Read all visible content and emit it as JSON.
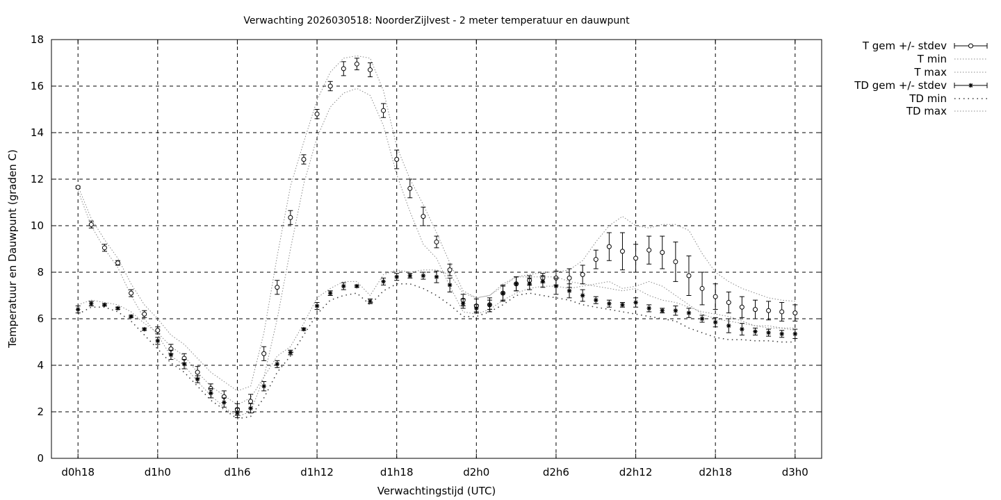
{
  "chart_data": {
    "type": "line",
    "title": "Verwachting 2026030518: NoorderZijlvest - 2 meter temperatuur en dauwpunt",
    "xlabel": "Verwachtingstijd (UTC)",
    "ylabel": "Temperatuur en Dauwpunt (graden C)",
    "x_unit": "hours",
    "xlim": [
      -2,
      56
    ],
    "ylim": [
      0,
      18
    ],
    "grid": true,
    "legend_position": "outside-right",
    "x_ticks": [
      {
        "x": 0,
        "label": "d0h18"
      },
      {
        "x": 6,
        "label": "d1h0"
      },
      {
        "x": 12,
        "label": "d1h6"
      },
      {
        "x": 18,
        "label": "d1h12"
      },
      {
        "x": 24,
        "label": "d1h18"
      },
      {
        "x": 30,
        "label": "d2h0"
      },
      {
        "x": 36,
        "label": "d2h6"
      },
      {
        "x": 42,
        "label": "d2h12"
      },
      {
        "x": 48,
        "label": "d2h18"
      },
      {
        "x": 54,
        "label": "d3h0"
      }
    ],
    "y_ticks": [
      0,
      2,
      4,
      6,
      8,
      10,
      12,
      14,
      16,
      18
    ],
    "x": [
      0,
      1,
      2,
      3,
      4,
      5,
      6,
      7,
      8,
      9,
      10,
      11,
      12,
      13,
      14,
      15,
      16,
      17,
      18,
      19,
      20,
      21,
      22,
      23,
      24,
      25,
      26,
      27,
      28,
      29,
      30,
      31,
      32,
      33,
      34,
      35,
      36,
      37,
      38,
      39,
      40,
      41,
      42,
      43,
      44,
      45,
      46,
      47,
      48,
      49,
      50,
      51,
      52,
      53,
      54
    ],
    "series": [
      {
        "name": "T gem +/- stdev",
        "marker": "circle",
        "values": [
          11.65,
          10.05,
          9.05,
          8.4,
          7.1,
          6.2,
          5.5,
          4.7,
          4.3,
          3.7,
          3.0,
          2.65,
          2.1,
          2.45,
          4.5,
          7.35,
          10.35,
          12.85,
          14.8,
          16.0,
          16.75,
          16.95,
          16.7,
          14.95,
          12.85,
          11.6,
          10.4,
          9.3,
          8.1,
          6.8,
          6.55,
          6.6,
          7.1,
          7.5,
          7.65,
          7.75,
          7.75,
          7.75,
          7.9,
          8.55,
          9.1,
          8.9,
          8.6,
          8.95,
          8.85,
          8.45,
          7.85,
          7.3,
          6.95,
          6.7,
          6.5,
          6.4,
          6.35,
          6.3,
          6.25
        ],
        "errors": [
          0.05,
          0.15,
          0.15,
          0.1,
          0.15,
          0.15,
          0.15,
          0.2,
          0.2,
          0.25,
          0.2,
          0.25,
          0.25,
          0.3,
          0.3,
          0.3,
          0.3,
          0.2,
          0.2,
          0.2,
          0.3,
          0.25,
          0.3,
          0.3,
          0.4,
          0.4,
          0.4,
          0.25,
          0.25,
          0.25,
          0.3,
          0.3,
          0.3,
          0.3,
          0.2,
          0.2,
          0.3,
          0.4,
          0.4,
          0.4,
          0.6,
          0.8,
          0.6,
          0.6,
          0.7,
          0.85,
          0.85,
          0.7,
          0.55,
          0.45,
          0.45,
          0.4,
          0.4,
          0.4,
          0.35
        ]
      },
      {
        "name": "T min",
        "style": "dotted",
        "values": [
          11.5,
          10.0,
          9.0,
          8.2,
          7.0,
          6.0,
          5.3,
          4.4,
          4.0,
          3.3,
          2.7,
          2.2,
          1.8,
          2.0,
          3.5,
          6.0,
          9.0,
          11.8,
          13.8,
          15.1,
          15.7,
          15.9,
          15.6,
          14.3,
          12.2,
          10.6,
          9.2,
          8.6,
          7.4,
          6.3,
          6.2,
          6.4,
          6.8,
          7.1,
          7.3,
          7.4,
          7.4,
          7.3,
          7.4,
          7.5,
          7.6,
          7.3,
          7.4,
          7.6,
          7.4,
          7.0,
          6.6,
          6.2,
          6.0,
          5.9,
          5.8,
          5.7,
          5.6,
          5.6,
          5.5
        ]
      },
      {
        "name": "T max",
        "style": "dotted",
        "values": [
          11.7,
          10.3,
          9.4,
          8.6,
          7.5,
          6.6,
          6.0,
          5.3,
          4.9,
          4.3,
          3.7,
          3.3,
          2.9,
          3.1,
          5.4,
          8.7,
          11.7,
          13.6,
          15.4,
          16.6,
          17.2,
          17.3,
          17.2,
          15.8,
          13.4,
          12.0,
          10.9,
          9.7,
          8.4,
          7.2,
          6.9,
          7.0,
          7.4,
          7.8,
          7.9,
          8.0,
          8.0,
          8.1,
          8.5,
          9.3,
          10.0,
          10.4,
          10.0,
          9.9,
          10.05,
          10.05,
          9.8,
          8.8,
          8.0,
          7.6,
          7.3,
          7.1,
          6.9,
          6.8,
          6.75
        ]
      },
      {
        "name": "TD gem +/- stdev",
        "marker": "star",
        "values": [
          6.4,
          6.65,
          6.6,
          6.45,
          6.1,
          5.55,
          5.05,
          4.45,
          4.05,
          3.4,
          2.8,
          2.4,
          1.95,
          2.15,
          3.1,
          4.05,
          4.55,
          5.55,
          6.55,
          7.1,
          7.4,
          7.4,
          6.75,
          7.6,
          7.8,
          7.85,
          7.85,
          7.8,
          7.45,
          6.65,
          6.45,
          6.6,
          7.1,
          7.5,
          7.5,
          7.6,
          7.4,
          7.2,
          7.0,
          6.8,
          6.65,
          6.6,
          6.7,
          6.45,
          6.35,
          6.35,
          6.25,
          6.0,
          5.85,
          5.7,
          5.55,
          5.45,
          5.4,
          5.35,
          5.35
        ],
        "errors": [
          0.15,
          0.1,
          0.05,
          0.05,
          0.05,
          0.05,
          0.15,
          0.2,
          0.2,
          0.15,
          0.2,
          0.2,
          0.2,
          0.2,
          0.2,
          0.15,
          0.1,
          0.05,
          0.15,
          0.1,
          0.15,
          0.05,
          0.1,
          0.15,
          0.15,
          0.1,
          0.15,
          0.25,
          0.3,
          0.2,
          0.15,
          0.2,
          0.35,
          0.3,
          0.25,
          0.25,
          0.35,
          0.3,
          0.25,
          0.15,
          0.15,
          0.1,
          0.2,
          0.15,
          0.1,
          0.2,
          0.2,
          0.15,
          0.2,
          0.3,
          0.25,
          0.15,
          0.15,
          0.15,
          0.2
        ]
      },
      {
        "name": "TD min",
        "style": "dotted",
        "values": [
          6.2,
          6.5,
          6.5,
          6.3,
          5.9,
          5.3,
          4.7,
          4.1,
          3.7,
          3.1,
          2.5,
          2.1,
          1.7,
          1.8,
          2.6,
          3.7,
          4.4,
          5.3,
          6.2,
          6.8,
          7.0,
          7.1,
          6.6,
          7.2,
          7.5,
          7.5,
          7.3,
          7.0,
          6.6,
          6.1,
          6.1,
          6.3,
          6.6,
          7.0,
          7.1,
          7.0,
          6.9,
          6.8,
          6.6,
          6.5,
          6.4,
          6.3,
          6.2,
          6.1,
          6.0,
          5.9,
          5.6,
          5.4,
          5.2,
          5.1,
          5.1,
          5.05,
          5.05,
          5.0,
          5.0
        ]
      },
      {
        "name": "TD max",
        "style": "dotted",
        "values": [
          6.6,
          6.8,
          6.7,
          6.6,
          6.3,
          5.8,
          5.4,
          4.8,
          4.4,
          3.7,
          3.1,
          2.7,
          2.3,
          2.6,
          3.5,
          4.4,
          4.8,
          5.8,
          6.9,
          7.3,
          7.6,
          7.6,
          7.0,
          7.9,
          8.1,
          8.0,
          8.1,
          8.1,
          7.9,
          7.1,
          6.9,
          7.0,
          7.5,
          7.8,
          7.8,
          7.8,
          7.8,
          7.6,
          7.5,
          7.4,
          7.3,
          7.2,
          7.3,
          7.0,
          6.8,
          6.7,
          6.5,
          6.3,
          6.2,
          6.1,
          5.9,
          5.7,
          5.7,
          5.6,
          5.6
        ]
      }
    ]
  }
}
